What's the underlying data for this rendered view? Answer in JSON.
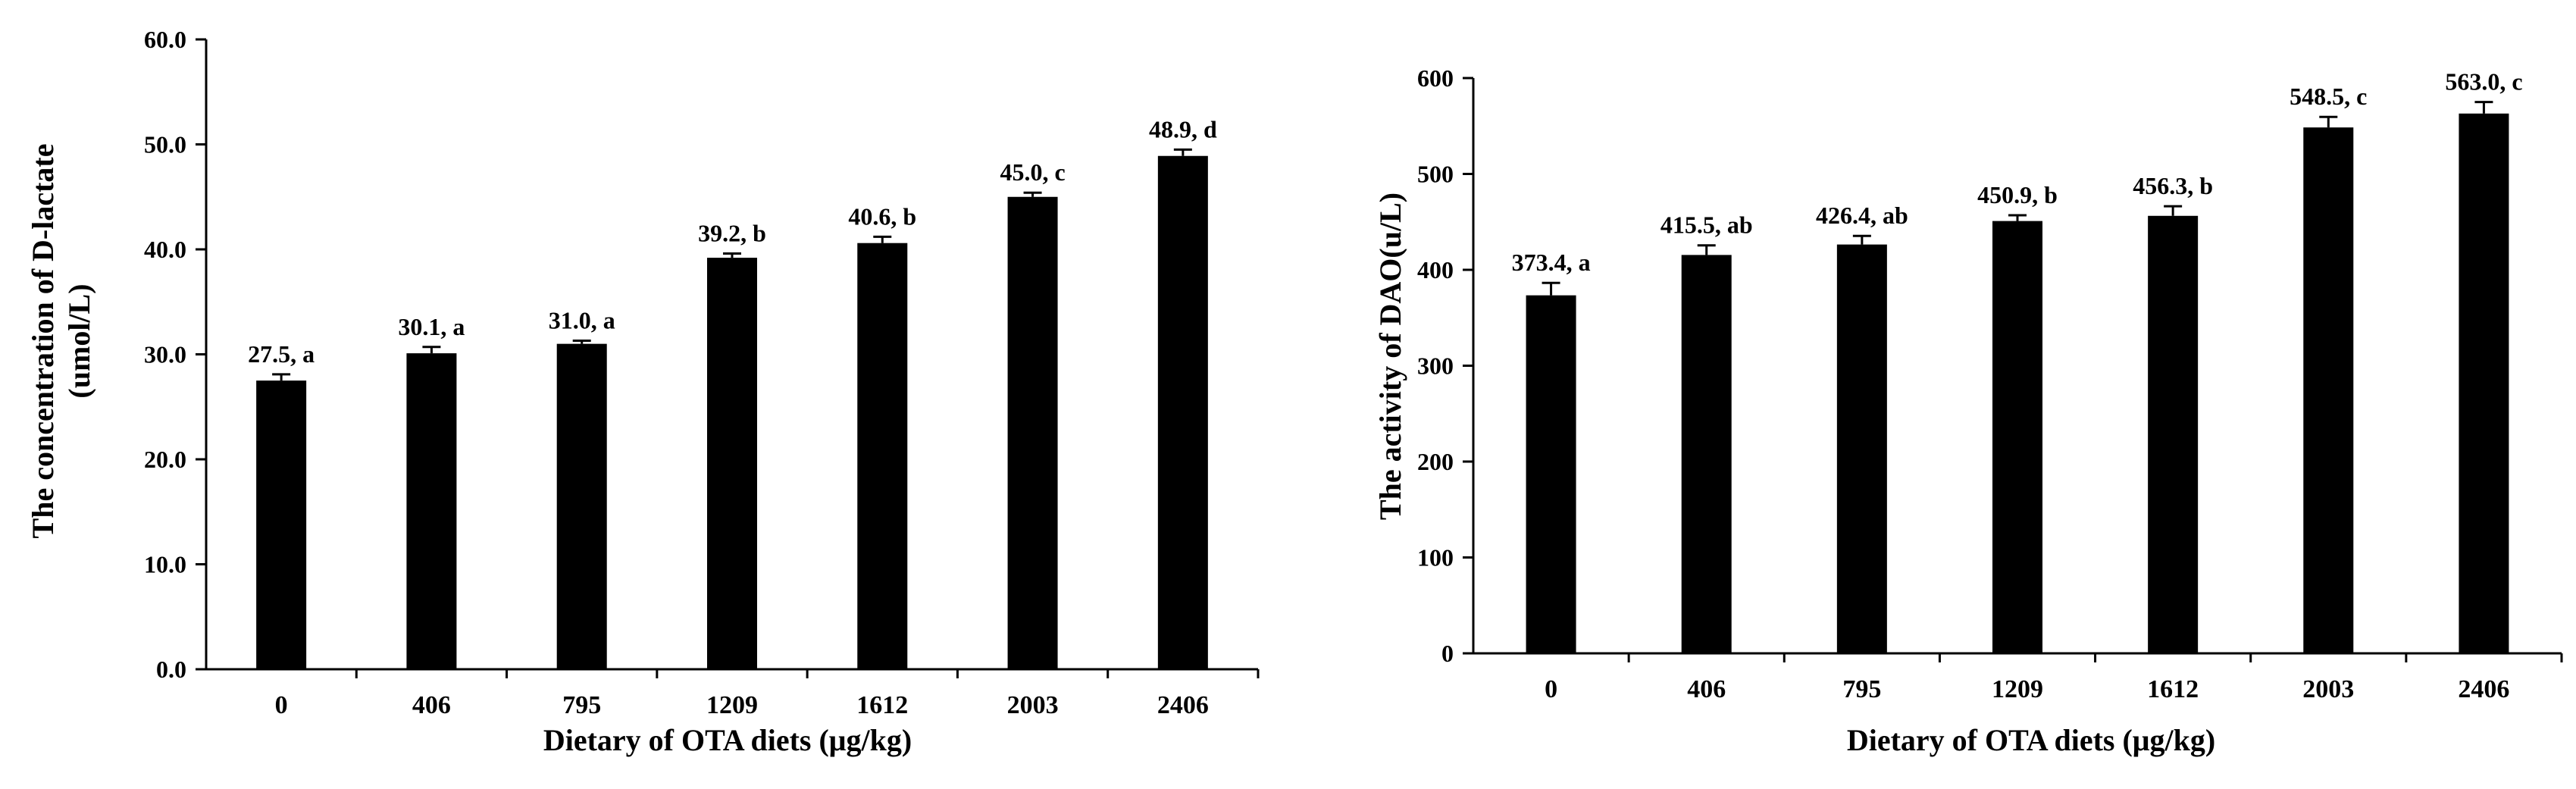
{
  "chart_data": [
    {
      "type": "bar",
      "categories": [
        "0",
        "406",
        "795",
        "1209",
        "1612",
        "2003",
        "2406"
      ],
      "values": [
        27.5,
        30.1,
        31.0,
        39.2,
        40.6,
        45.0,
        48.9
      ],
      "errors": [
        0.6,
        0.6,
        0.3,
        0.4,
        0.6,
        0.4,
        0.6
      ],
      "data_labels": [
        "27.5, a",
        "30.1, a",
        "31.0, a",
        "39.2, b",
        "40.6, b",
        "45.0, c",
        "48.9, d"
      ],
      "ylim": [
        0,
        60
      ],
      "yticks": [
        "0.0",
        "10.0",
        "20.0",
        "30.0",
        "40.0",
        "50.0",
        "60.0"
      ],
      "xlabel": "Dietary of OTA diets (μg/kg)",
      "ylabel_line1": "The concentration of D-lactate",
      "ylabel_line2": "(umol/L)",
      "grid": false,
      "bar_color": "#000000"
    },
    {
      "type": "bar",
      "categories": [
        "0",
        "406",
        "795",
        "1209",
        "1612",
        "2003",
        "2406"
      ],
      "values": [
        373.4,
        415.5,
        426.4,
        450.9,
        456.3,
        548.5,
        563.0
      ],
      "errors": [
        13,
        10,
        9,
        6,
        10,
        11,
        12
      ],
      "data_labels": [
        "373.4, a",
        "415.5, ab",
        "426.4, ab",
        "450.9, b",
        "456.3, b",
        "548.5, c",
        "563.0, c"
      ],
      "ylim": [
        0,
        600
      ],
      "yticks": [
        "0",
        "100",
        "200",
        "300",
        "400",
        "500",
        "600"
      ],
      "xlabel": "Dietary of OTA diets (μg/kg)",
      "ylabel": "The activity of DAO(u/L)",
      "grid": false,
      "bar_color": "#000000"
    }
  ]
}
